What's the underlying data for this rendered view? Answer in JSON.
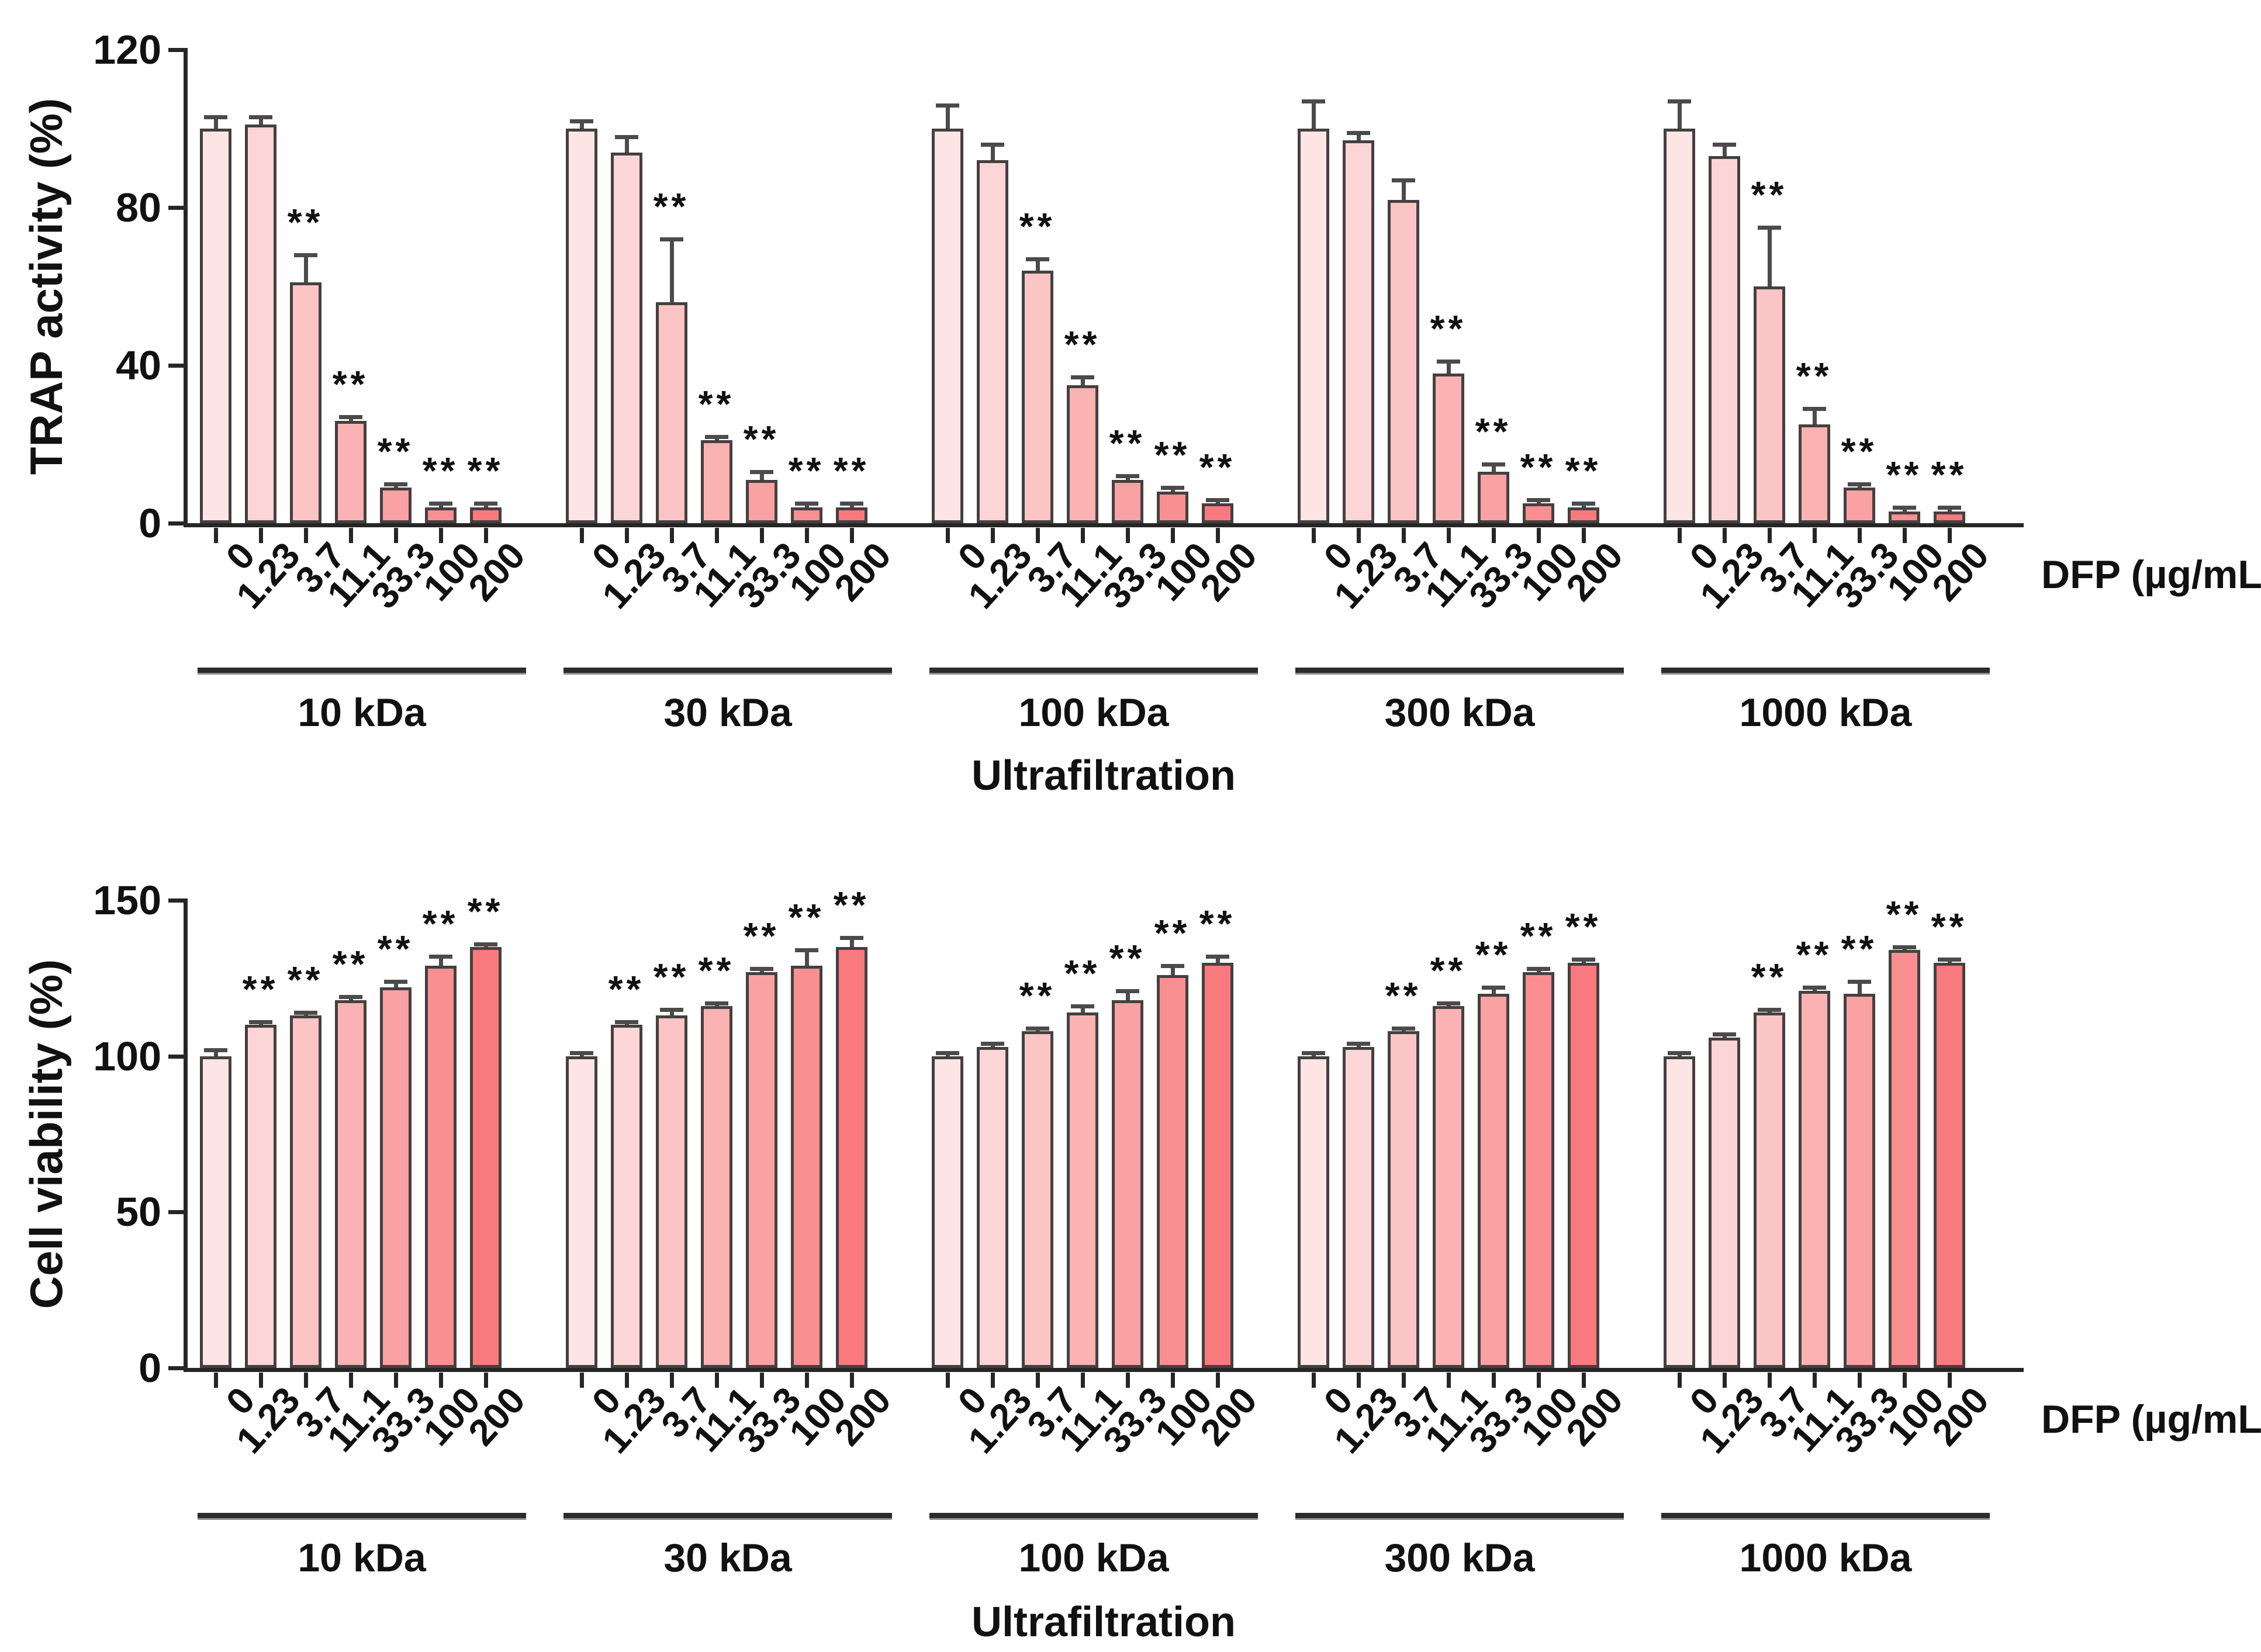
{
  "chart_data": [
    {
      "type": "bar",
      "title": "",
      "ylabel": "TRAP activity (%)",
      "x_axis_label": "DFP (µg/mL)",
      "group_axis_label": "Ultrafiltration",
      "ylim": [
        0,
        120
      ],
      "yticks": [
        0,
        40,
        80,
        120
      ],
      "grid": false,
      "legend": "none",
      "categories": [
        "0",
        "1.23",
        "3.7",
        "11.1",
        "33.3",
        "100",
        "200"
      ],
      "groups": [
        {
          "label": "10 kDa",
          "values": [
            100,
            101,
            61,
            26,
            9,
            4,
            4
          ],
          "errors": [
            3,
            2,
            7,
            1,
            1,
            1,
            1
          ],
          "sig": [
            false,
            false,
            true,
            true,
            true,
            true,
            true
          ]
        },
        {
          "label": "30 kDa",
          "values": [
            100,
            94,
            56,
            21,
            11,
            4,
            4
          ],
          "errors": [
            2,
            4,
            16,
            1,
            2,
            1,
            1
          ],
          "sig": [
            false,
            false,
            true,
            true,
            true,
            true,
            true
          ]
        },
        {
          "label": "100 kDa",
          "values": [
            100,
            92,
            64,
            35,
            11,
            8,
            5
          ],
          "errors": [
            6,
            4,
            3,
            2,
            1,
            1,
            1
          ],
          "sig": [
            false,
            false,
            true,
            true,
            true,
            true,
            true
          ]
        },
        {
          "label": "300 kDa",
          "values": [
            100,
            97,
            82,
            38,
            13,
            5,
            4
          ],
          "errors": [
            7,
            2,
            5,
            3,
            2,
            1,
            1
          ],
          "sig": [
            false,
            false,
            false,
            true,
            true,
            true,
            true
          ]
        },
        {
          "label": "1000 kDa",
          "values": [
            100,
            93,
            60,
            25,
            9,
            3,
            3
          ],
          "errors": [
            7,
            3,
            15,
            4,
            1,
            1,
            1
          ],
          "sig": [
            false,
            false,
            true,
            true,
            true,
            true,
            true
          ]
        }
      ]
    },
    {
      "type": "bar",
      "title": "",
      "ylabel": "Cell viability (%)",
      "x_axis_label": "DFP (µg/mL)",
      "group_axis_label": "Ultrafiltration",
      "ylim": [
        0,
        150
      ],
      "yticks": [
        0,
        50,
        100,
        150
      ],
      "grid": false,
      "legend": "none",
      "categories": [
        "0",
        "1.23",
        "3.7",
        "11.1",
        "33.3",
        "100",
        "200"
      ],
      "groups": [
        {
          "label": "10 kDa",
          "values": [
            100,
            110,
            113,
            118,
            122,
            129,
            135
          ],
          "errors": [
            2,
            1,
            1,
            1,
            2,
            3,
            1
          ],
          "sig": [
            false,
            true,
            true,
            true,
            true,
            true,
            true
          ]
        },
        {
          "label": "30 kDa",
          "values": [
            100,
            110,
            113,
            116,
            127,
            129,
            135
          ],
          "errors": [
            1,
            1,
            2,
            1,
            1,
            5,
            3
          ],
          "sig": [
            false,
            true,
            true,
            true,
            true,
            true,
            true
          ]
        },
        {
          "label": "100 kDa",
          "values": [
            100,
            103,
            108,
            114,
            118,
            126,
            130
          ],
          "errors": [
            1,
            1,
            1,
            2,
            3,
            3,
            2
          ],
          "sig": [
            false,
            false,
            true,
            true,
            true,
            true,
            true
          ]
        },
        {
          "label": "300 kDa",
          "values": [
            100,
            103,
            108,
            116,
            120,
            127,
            130
          ],
          "errors": [
            1,
            1,
            1,
            1,
            2,
            1,
            1
          ],
          "sig": [
            false,
            false,
            true,
            true,
            true,
            true,
            true
          ]
        },
        {
          "label": "1000 kDa",
          "values": [
            100,
            106,
            114,
            121,
            120,
            134,
            130
          ],
          "errors": [
            1,
            1,
            1,
            1,
            4,
            1,
            1
          ],
          "sig": [
            false,
            false,
            true,
            true,
            true,
            true,
            true
          ]
        }
      ]
    }
  ],
  "styles": {
    "sig_symbol": "**",
    "bar_colors": [
      "#fde5e6",
      "#fcd6d7",
      "#fbc4c5",
      "#fab2b3",
      "#faa1a3",
      "#fa8f91",
      "#f97a7e"
    ],
    "bar_outline": "#454040",
    "axis_color": "#262626",
    "error_color": "#4d4a4a",
    "group_line_color": "#2b2b2b"
  }
}
